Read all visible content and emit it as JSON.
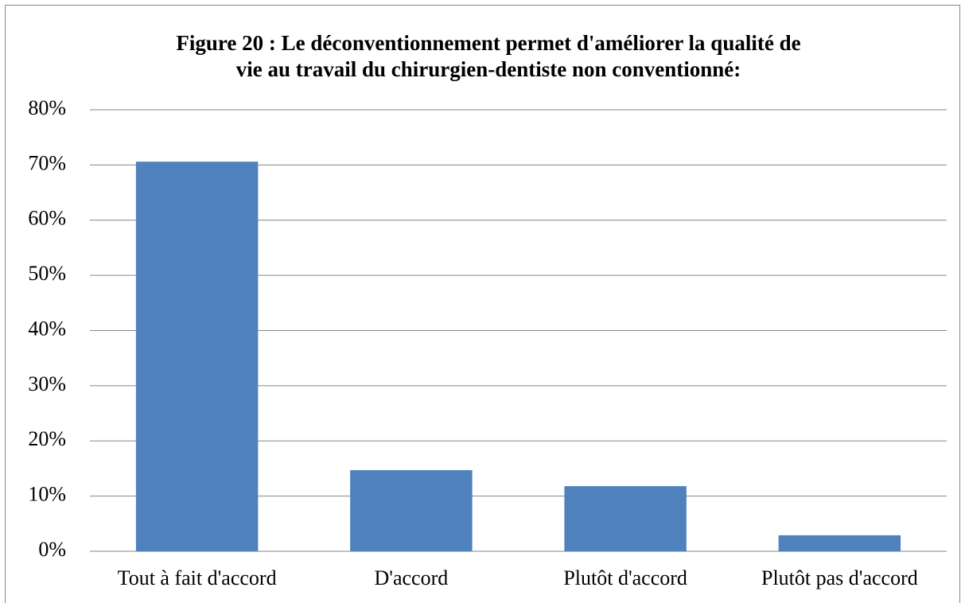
{
  "chart_data": {
    "type": "bar",
    "title": [
      "Figure 20 : Le déconventionnement permet d'améliorer la qualité de",
      "vie au travail du chirurgien-dentiste non conventionné:"
    ],
    "categories": [
      "Tout à fait d'accord",
      "D'accord",
      "Plutôt d'accord",
      "Plutôt pas d'accord"
    ],
    "values": [
      70.6,
      14.7,
      11.8,
      2.9
    ],
    "color": "#4f81bd",
    "ylim": [
      0,
      80
    ],
    "yticks": [
      {
        "value": 0,
        "label": "0%"
      },
      {
        "value": 10,
        "label": "10%"
      },
      {
        "value": 20,
        "label": "20%"
      },
      {
        "value": 30,
        "label": "30%"
      },
      {
        "value": 40,
        "label": "40%"
      },
      {
        "value": 50,
        "label": "50%"
      },
      {
        "value": 60,
        "label": "60%"
      },
      {
        "value": 70,
        "label": "70%"
      },
      {
        "value": 80,
        "label": "80%"
      }
    ],
    "grid": true
  }
}
